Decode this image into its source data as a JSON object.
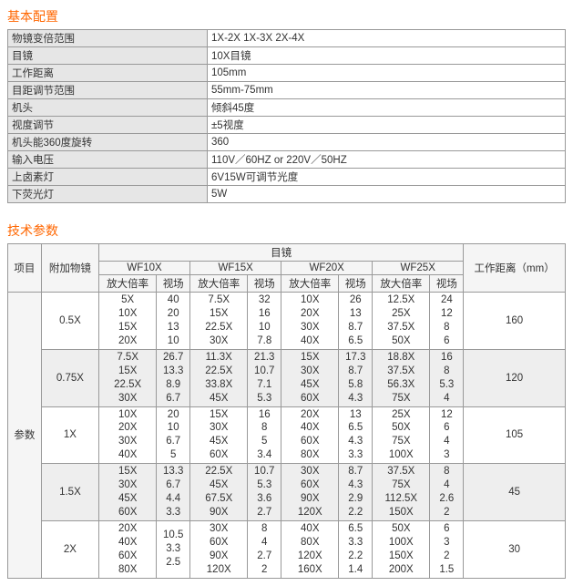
{
  "section1_title": "基本配置",
  "config_rows": [
    {
      "k": "物镜变倍范围",
      "v": "1X-2X 1X-3X 2X-4X"
    },
    {
      "k": "目镜",
      "v": "10X目镜"
    },
    {
      "k": "工作距离",
      "v": "105mm"
    },
    {
      "k": "目距调节范围",
      "v": "55mm-75mm"
    },
    {
      "k": "机头",
      "v": "倾斜45度"
    },
    {
      "k": "视度调节",
      "v": "±5视度"
    },
    {
      "k": "机头能360度旋转",
      "v": "360"
    },
    {
      "k": "输入电压",
      "v": "110V／60HZ   or 220V／50HZ"
    },
    {
      "k": "上卤素灯",
      "v": "6V15W可调节光度"
    },
    {
      "k": "下荧光灯",
      "v": "5W"
    }
  ],
  "section2_title": "技术参数",
  "tech_headers": {
    "col1": "项目",
    "col2": "附加物镜",
    "eyepiece": "目镜",
    "wf": [
      "WF10X",
      "WF15X",
      "WF20X",
      "WF25X"
    ],
    "sub": [
      "放大倍率",
      "视场"
    ],
    "work": "工作距离（mm）"
  },
  "row_label": "参数",
  "groups": [
    {
      "attach": "0.5X",
      "shade": false,
      "work": "160",
      "lines": [
        {
          "c": [
            "5X",
            "40",
            "7.5X",
            "32",
            "10X",
            "26",
            "12.5X",
            "24"
          ]
        },
        {
          "c": [
            "10X",
            "20",
            "15X",
            "16",
            "20X",
            "13",
            "25X",
            "12"
          ]
        },
        {
          "c": [
            "15X",
            "13",
            "22.5X",
            "10",
            "30X",
            "8.7",
            "37.5X",
            "8"
          ]
        },
        {
          "c": [
            "20X",
            "10",
            "30X",
            "7.8",
            "40X",
            "6.5",
            "50X",
            "6"
          ]
        }
      ]
    },
    {
      "attach": "0.75X",
      "shade": true,
      "work": "120",
      "lines": [
        {
          "c": [
            "7.5X",
            "26.7",
            "11.3X",
            "21.3",
            "15X",
            "17.3",
            "18.8X",
            "16"
          ]
        },
        {
          "c": [
            "15X",
            "13.3",
            "22.5X",
            "10.7",
            "30X",
            "8.7",
            "37.5X",
            "8"
          ]
        },
        {
          "c": [
            "22.5X",
            "8.9",
            "33.8X",
            "7.1",
            "45X",
            "5.8",
            "56.3X",
            "5.3"
          ]
        },
        {
          "c": [
            "30X",
            "6.7",
            "45X",
            "5.3",
            "60X",
            "4.3",
            "75X",
            "4"
          ]
        }
      ]
    },
    {
      "attach": "1X",
      "shade": false,
      "work": "105",
      "lines": [
        {
          "c": [
            "10X",
            "20",
            "15X",
            "16",
            "20X",
            "13",
            "25X",
            "12"
          ]
        },
        {
          "c": [
            "20X",
            "10",
            "30X",
            "8",
            "40X",
            "6.5",
            "50X",
            "6"
          ]
        },
        {
          "c": [
            "30X",
            "6.7",
            "45X",
            "5",
            "60X",
            "4.3",
            "75X",
            "4"
          ]
        },
        {
          "c": [
            "40X",
            "5",
            "60X",
            "3.4",
            "80X",
            "3.3",
            "100X",
            "3"
          ]
        }
      ]
    },
    {
      "attach": "1.5X",
      "shade": true,
      "work": "45",
      "lines": [
        {
          "c": [
            "15X",
            "13.3",
            "22.5X",
            "10.7",
            "30X",
            "8.7",
            "37.5X",
            "8"
          ]
        },
        {
          "c": [
            "30X",
            "6.7",
            "45X",
            "5.3",
            "60X",
            "4.3",
            "75X",
            "4"
          ]
        },
        {
          "c": [
            "45X",
            "4.4",
            "67.5X",
            "3.6",
            "90X",
            "2.9",
            "112.5X",
            "2.6"
          ]
        },
        {
          "c": [
            "60X",
            "3.3",
            "90X",
            "2.7",
            "120X",
            "2.2",
            "150X",
            "2"
          ]
        }
      ]
    },
    {
      "attach": "2X",
      "shade": false,
      "work": "30",
      "lines": [
        {
          "c": [
            "20X",
            "10.5",
            "30X",
            "8",
            "40X",
            "6.5",
            "50X",
            "6"
          ]
        },
        {
          "c": [
            "40X",
            "3.3",
            "60X",
            "4",
            "80X",
            "3.3",
            "100X",
            "3"
          ]
        },
        {
          "c": [
            "60X",
            "2.5",
            "90X",
            "2.7",
            "120X",
            "2.2",
            "150X",
            "2"
          ]
        },
        {
          "c": [
            "80X",
            "",
            "120X",
            "2",
            "160X",
            "1.4",
            "200X",
            "1.5"
          ]
        }
      ]
    }
  ]
}
